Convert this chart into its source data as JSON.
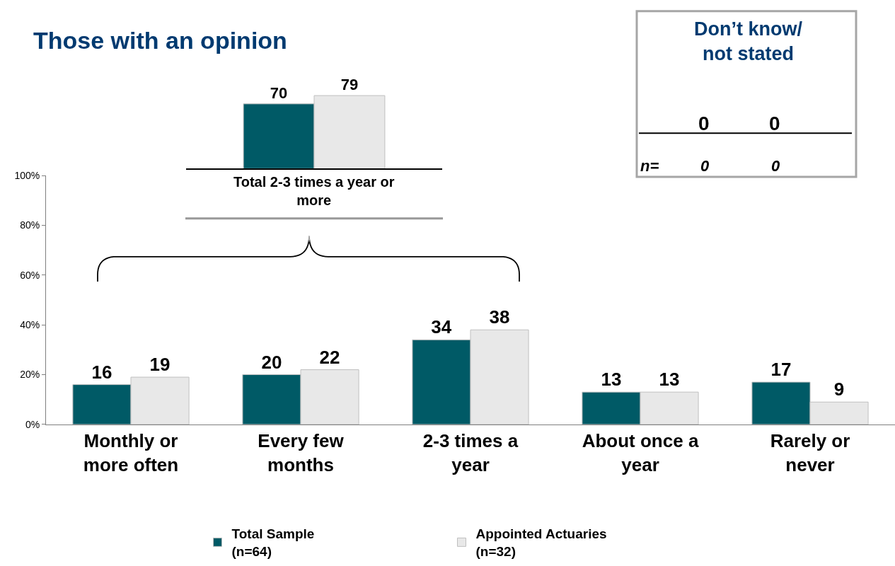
{
  "chart_data": [
    {
      "type": "bar",
      "categories": [
        "Monthly or more often",
        "Every few months",
        "2-3 times a year",
        "About once a year",
        "Rarely or never"
      ],
      "series": [
        {
          "name": "Total Sample\n(n=64)",
          "color": "#005a66",
          "values": [
            16,
            20,
            34,
            13,
            17
          ]
        },
        {
          "name": "Appointed Actuaries\n(n=32)",
          "color": "#e8e8e8",
          "values": [
            19,
            22,
            38,
            13,
            9
          ]
        }
      ],
      "ylim": [
        0,
        100
      ],
      "yticks": [
        {
          "value": 0,
          "label": "0%"
        },
        {
          "value": 20,
          "label": "20%"
        },
        {
          "value": 40,
          "label": "40%"
        },
        {
          "value": 60,
          "label": "60%"
        },
        {
          "value": 80,
          "label": "80%"
        },
        {
          "value": 100,
          "label": "100%"
        }
      ],
      "data_labels": true,
      "legend": "bottom"
    },
    {
      "type": "bar",
      "title": "Those with an opinion",
      "categories": [
        null
      ],
      "annotations": [
        "Total 2-3 times a year or more"
      ],
      "series": [
        {
          "color": "#005a66",
          "values": [
            70
          ]
        },
        {
          "color": "#e8e8e8",
          "values": [
            79
          ]
        }
      ],
      "data_labels": true,
      "tick_labels": false
    },
    {
      "type": "other",
      "title": "Don’t know/\nnot stated",
      "annotations": [
        "0",
        "0",
        "n=",
        "0",
        "0"
      ]
    }
  ]
}
